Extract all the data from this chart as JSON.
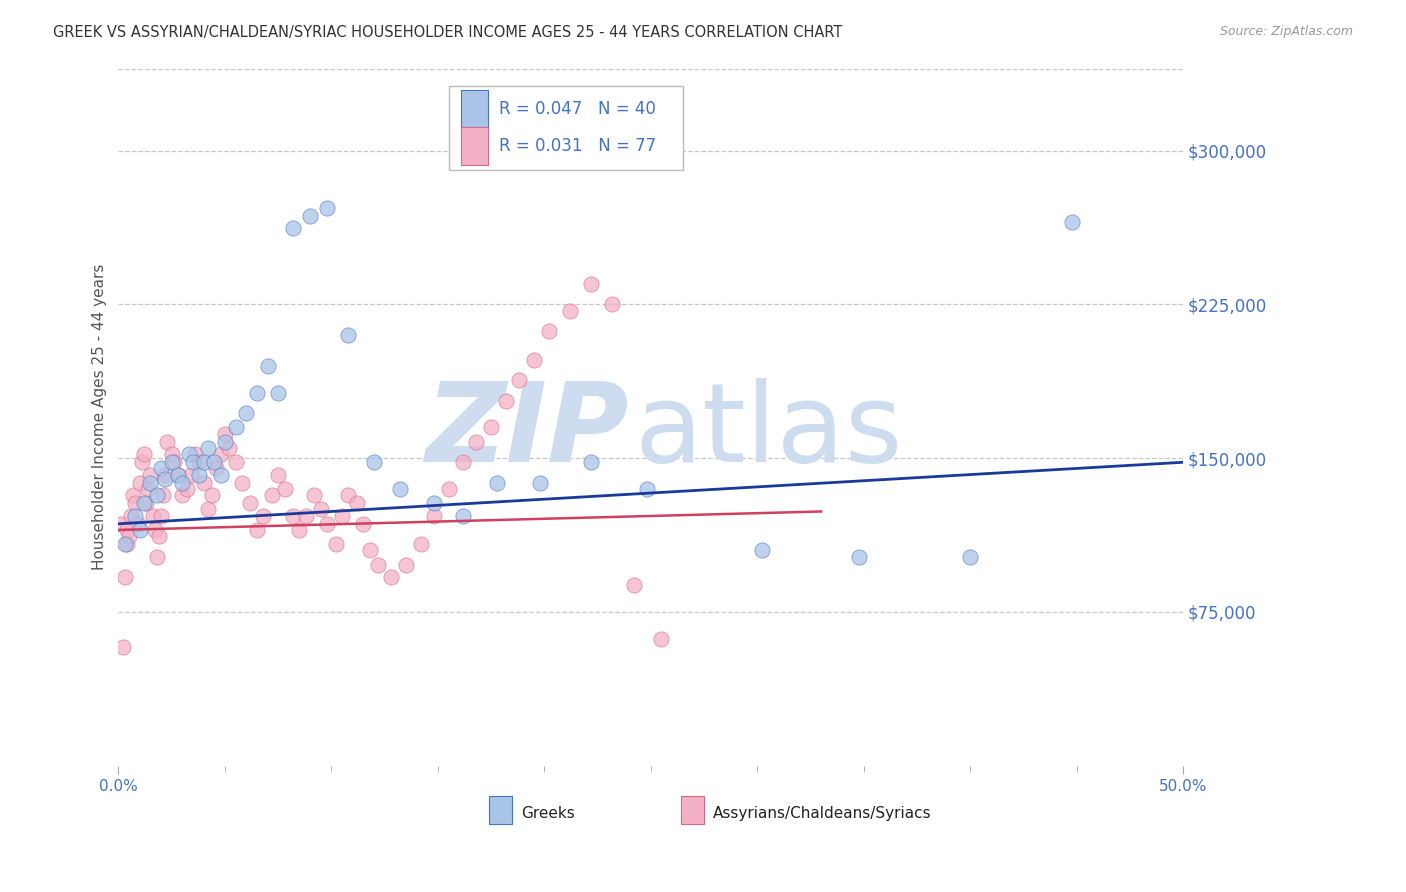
{
  "title": "GREEK VS ASSYRIAN/CHALDEAN/SYRIAC HOUSEHOLDER INCOME AGES 25 - 44 YEARS CORRELATION CHART",
  "source": "Source: ZipAtlas.com",
  "ylabel": "Householder Income Ages 25 - 44 years",
  "xlim": [
    0.0,
    0.5
  ],
  "ylim": [
    0,
    340000
  ],
  "xtick_vals": [
    0.0,
    0.5
  ],
  "xticklabels": [
    "0.0%",
    "50.0%"
  ],
  "yticks_right": [
    75000,
    150000,
    225000,
    300000
  ],
  "ytick_labels_right": [
    "$75,000",
    "$150,000",
    "$225,000",
    "$300,000"
  ],
  "right_axis_color": "#4472c4",
  "grid_color": "#c8c8c8",
  "background_color": "#ffffff",
  "legend_r1": "0.047",
  "legend_n1": "40",
  "legend_r2": "0.031",
  "legend_n2": "77",
  "greek_fill": "#aac4e8",
  "greek_edge": "#4472c4",
  "assyrian_fill": "#f4b0c4",
  "assyrian_edge": "#d06888",
  "trend_blue": "#1a3a9a",
  "trend_pink": "#d04060",
  "legend_label_1": "Greeks",
  "legend_label_2": "Assyrians/Chaldeans/Syriacs",
  "legend_text_color": "#4472c4",
  "greeks_x": [
    0.003,
    0.008,
    0.01,
    0.012,
    0.015,
    0.018,
    0.02,
    0.022,
    0.025,
    0.028,
    0.03,
    0.033,
    0.035,
    0.038,
    0.04,
    0.042,
    0.045,
    0.048,
    0.05,
    0.055,
    0.06,
    0.065,
    0.07,
    0.075,
    0.082,
    0.09,
    0.098,
    0.108,
    0.12,
    0.132,
    0.148,
    0.162,
    0.178,
    0.198,
    0.222,
    0.248,
    0.302,
    0.348,
    0.4,
    0.448
  ],
  "greeks_y": [
    108000,
    122000,
    115000,
    128000,
    138000,
    132000,
    145000,
    140000,
    148000,
    142000,
    138000,
    152000,
    148000,
    142000,
    148000,
    155000,
    148000,
    142000,
    158000,
    165000,
    172000,
    182000,
    195000,
    182000,
    262000,
    268000,
    272000,
    210000,
    148000,
    135000,
    128000,
    122000,
    138000,
    138000,
    148000,
    135000,
    105000,
    102000,
    102000,
    265000
  ],
  "assyrians_x": [
    0.001,
    0.002,
    0.003,
    0.004,
    0.004,
    0.005,
    0.006,
    0.007,
    0.008,
    0.009,
    0.01,
    0.011,
    0.012,
    0.013,
    0.014,
    0.015,
    0.016,
    0.017,
    0.018,
    0.019,
    0.02,
    0.021,
    0.022,
    0.023,
    0.025,
    0.026,
    0.028,
    0.03,
    0.032,
    0.034,
    0.036,
    0.038,
    0.04,
    0.042,
    0.044,
    0.046,
    0.048,
    0.05,
    0.052,
    0.055,
    0.058,
    0.062,
    0.065,
    0.068,
    0.072,
    0.075,
    0.078,
    0.082,
    0.085,
    0.088,
    0.092,
    0.095,
    0.098,
    0.102,
    0.105,
    0.108,
    0.112,
    0.115,
    0.118,
    0.122,
    0.128,
    0.135,
    0.142,
    0.148,
    0.155,
    0.162,
    0.168,
    0.175,
    0.182,
    0.188,
    0.195,
    0.202,
    0.212,
    0.222,
    0.232,
    0.242,
    0.255
  ],
  "assyrians_y": [
    118000,
    58000,
    92000,
    108000,
    115000,
    112000,
    122000,
    132000,
    128000,
    118000,
    138000,
    148000,
    152000,
    128000,
    135000,
    142000,
    122000,
    115000,
    102000,
    112000,
    122000,
    132000,
    142000,
    158000,
    152000,
    148000,
    142000,
    132000,
    135000,
    142000,
    152000,
    148000,
    138000,
    125000,
    132000,
    145000,
    152000,
    162000,
    155000,
    148000,
    138000,
    128000,
    115000,
    122000,
    132000,
    142000,
    135000,
    122000,
    115000,
    122000,
    132000,
    125000,
    118000,
    108000,
    122000,
    132000,
    128000,
    118000,
    105000,
    98000,
    92000,
    98000,
    108000,
    122000,
    135000,
    148000,
    158000,
    165000,
    178000,
    188000,
    198000,
    212000,
    222000,
    235000,
    225000,
    88000,
    62000
  ]
}
